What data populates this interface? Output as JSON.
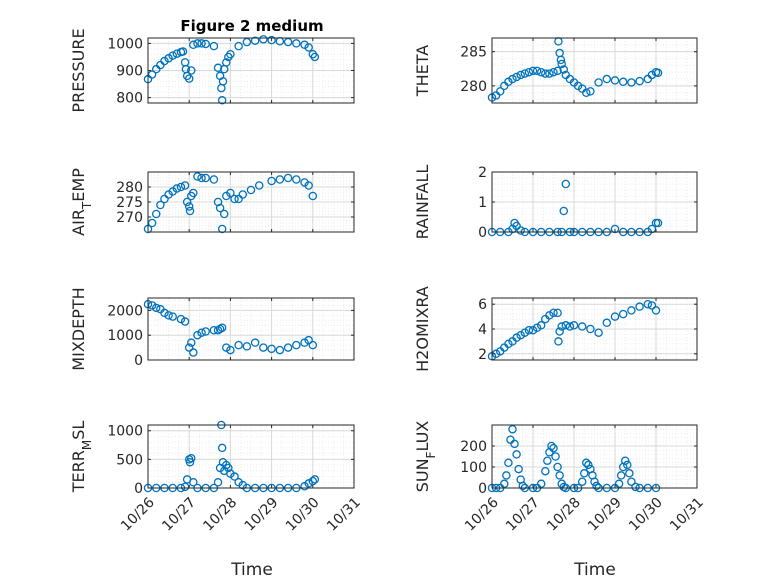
{
  "figure": {
    "title": "Figure 2 medium",
    "xlabel": "Time"
  },
  "x_ticks": [
    "10/26",
    "10/27",
    "10/28",
    "10/29",
    "10/30",
    "10/31"
  ],
  "colors": {
    "marker": "#0072BD",
    "axis": "#262626",
    "grid": "#d9d9d9",
    "minor_grid": "#ececec"
  },
  "chart_data": [
    {
      "type": "scatter",
      "ylabel": "PRESSURE",
      "ylim": [
        780,
        1020
      ],
      "yticks": [
        800,
        900,
        1000
      ],
      "xlim": [
        26,
        31
      ],
      "x": [
        26.0,
        26.1,
        26.2,
        26.3,
        26.4,
        26.5,
        26.6,
        26.7,
        26.8,
        26.85,
        26.9,
        26.92,
        26.95,
        27.0,
        27.05,
        27.1,
        27.2,
        27.3,
        27.4,
        27.6,
        27.7,
        27.75,
        27.78,
        27.8,
        27.82,
        27.85,
        27.9,
        27.95,
        28.0,
        28.2,
        28.4,
        28.6,
        28.8,
        29.0,
        29.2,
        29.4,
        29.6,
        29.8,
        29.9,
        30.0,
        30.05
      ],
      "y": [
        868,
        885,
        905,
        920,
        935,
        945,
        955,
        962,
        968,
        970,
        930,
        905,
        880,
        870,
        900,
        995,
        1000,
        1000,
        998,
        990,
        910,
        880,
        835,
        790,
        860,
        905,
        930,
        950,
        960,
        990,
        1005,
        1010,
        1015,
        1012,
        1008,
        1005,
        1000,
        995,
        985,
        960,
        950
      ]
    },
    {
      "type": "scatter",
      "ylabel": "THETA",
      "ylim": [
        277.5,
        287
      ],
      "yticks": [
        280,
        285
      ],
      "xlim": [
        26,
        31
      ],
      "x": [
        26.0,
        26.1,
        26.2,
        26.3,
        26.4,
        26.5,
        26.6,
        26.7,
        26.8,
        26.9,
        27.0,
        27.1,
        27.2,
        27.3,
        27.4,
        27.5,
        27.6,
        27.62,
        27.65,
        27.68,
        27.7,
        27.75,
        27.8,
        27.9,
        28.0,
        28.1,
        28.2,
        28.3,
        28.4,
        28.6,
        28.8,
        29.0,
        29.2,
        29.4,
        29.6,
        29.8,
        29.9,
        30.0,
        30.05
      ],
      "y": [
        278.3,
        278.6,
        279.2,
        280.0,
        280.6,
        281.0,
        281.3,
        281.6,
        281.8,
        282.0,
        282.2,
        282.2,
        282.0,
        281.8,
        281.8,
        282.0,
        282.2,
        286.5,
        284.8,
        283.8,
        283.2,
        282.4,
        281.6,
        281.0,
        280.5,
        280.0,
        279.6,
        279.0,
        279.2,
        280.5,
        281.0,
        280.8,
        280.6,
        280.5,
        280.7,
        281.0,
        281.6,
        282.0,
        281.9
      ]
    },
    {
      "type": "scatter",
      "ylabel": "AIR_TEMP",
      "ylim": [
        265,
        285
      ],
      "yticks": [
        270,
        275,
        280
      ],
      "xlim": [
        26,
        31
      ],
      "x": [
        26.0,
        26.1,
        26.2,
        26.3,
        26.4,
        26.5,
        26.6,
        26.7,
        26.8,
        26.9,
        26.95,
        27.0,
        27.02,
        27.05,
        27.1,
        27.2,
        27.3,
        27.4,
        27.6,
        27.7,
        27.75,
        27.8,
        27.85,
        27.9,
        28.0,
        28.1,
        28.2,
        28.3,
        28.5,
        28.7,
        29.0,
        29.2,
        29.4,
        29.6,
        29.8,
        29.9,
        30.0
      ],
      "y": [
        266,
        268,
        271,
        274,
        276,
        277.5,
        278.5,
        279.5,
        280,
        280.5,
        275,
        273.5,
        272,
        277,
        278,
        283.5,
        283,
        283,
        282.5,
        275,
        273,
        266,
        271,
        277,
        278,
        276,
        276,
        277.5,
        279,
        280.5,
        282,
        282.5,
        283,
        282.5,
        281.5,
        280.5,
        277
      ]
    },
    {
      "type": "scatter",
      "ylabel": "RAINFALL",
      "ylim": [
        0,
        2
      ],
      "yticks": [
        0,
        1,
        2
      ],
      "xlim": [
        26,
        31
      ],
      "x": [
        26.0,
        26.2,
        26.4,
        26.5,
        26.55,
        26.6,
        26.7,
        26.8,
        27.0,
        27.2,
        27.4,
        27.6,
        27.7,
        27.75,
        27.8,
        27.9,
        28.0,
        28.2,
        28.4,
        28.6,
        28.8,
        29.0,
        29.2,
        29.4,
        29.6,
        29.8,
        29.9,
        30.0,
        30.05
      ],
      "y": [
        0,
        0,
        0,
        0.1,
        0.3,
        0.2,
        0.05,
        0,
        0,
        0,
        0,
        0,
        0,
        0.7,
        1.6,
        0,
        0,
        0,
        0,
        0,
        0,
        0.1,
        0,
        0,
        0,
        0,
        0.1,
        0.3,
        0.3
      ]
    },
    {
      "type": "scatter",
      "ylabel": "MIXDEPTH",
      "ylim": [
        0,
        2500
      ],
      "yticks": [
        0,
        1000,
        2000
      ],
      "xlim": [
        26,
        31
      ],
      "x": [
        26.0,
        26.1,
        26.2,
        26.3,
        26.4,
        26.5,
        26.6,
        26.8,
        26.9,
        27.0,
        27.05,
        27.1,
        27.2,
        27.3,
        27.4,
        27.6,
        27.7,
        27.75,
        27.8,
        27.9,
        28.0,
        28.2,
        28.4,
        28.6,
        28.8,
        29.0,
        29.2,
        29.4,
        29.6,
        29.8,
        29.9,
        30.0
      ],
      "y": [
        2250,
        2200,
        2100,
        2050,
        1900,
        1800,
        1750,
        1650,
        1550,
        500,
        700,
        300,
        1000,
        1100,
        1150,
        1200,
        1200,
        1250,
        1300,
        500,
        400,
        600,
        550,
        700,
        500,
        450,
        400,
        500,
        600,
        700,
        800,
        600
      ]
    },
    {
      "type": "scatter",
      "ylabel": "H2OMIXRA",
      "ylim": [
        1.5,
        6.5
      ],
      "yticks": [
        2,
        4,
        6
      ],
      "xlim": [
        26,
        31
      ],
      "x": [
        26.0,
        26.1,
        26.2,
        26.3,
        26.4,
        26.5,
        26.6,
        26.7,
        26.8,
        26.9,
        27.0,
        27.1,
        27.2,
        27.3,
        27.4,
        27.5,
        27.6,
        27.62,
        27.65,
        27.7,
        27.8,
        27.9,
        28.0,
        28.2,
        28.4,
        28.6,
        28.8,
        29.0,
        29.2,
        29.4,
        29.6,
        29.8,
        29.9,
        30.0
      ],
      "y": [
        1.8,
        2.0,
        2.2,
        2.5,
        2.8,
        3.0,
        3.3,
        3.5,
        3.7,
        3.9,
        3.9,
        4.1,
        4.3,
        4.8,
        5.1,
        5.3,
        5.3,
        3.0,
        3.8,
        4.2,
        4.3,
        4.2,
        4.3,
        4.2,
        4.0,
        3.7,
        4.5,
        5.0,
        5.2,
        5.5,
        5.8,
        6.0,
        5.9,
        5.5
      ]
    },
    {
      "type": "scatter",
      "ylabel": "TERR_MSL",
      "ylim": [
        0,
        1100
      ],
      "yticks": [
        0,
        500,
        1000
      ],
      "xlim": [
        26,
        31
      ],
      "x": [
        26.0,
        26.2,
        26.4,
        26.6,
        26.8,
        26.9,
        26.95,
        27.0,
        27.02,
        27.05,
        27.1,
        27.2,
        27.4,
        27.6,
        27.7,
        27.75,
        27.78,
        27.8,
        27.82,
        27.85,
        27.9,
        27.95,
        28.0,
        28.1,
        28.2,
        28.3,
        28.4,
        28.6,
        28.8,
        29.0,
        29.2,
        29.4,
        29.6,
        29.8,
        29.9,
        30.0,
        30.05
      ],
      "y": [
        0,
        0,
        0,
        0,
        0,
        20,
        150,
        500,
        450,
        520,
        100,
        0,
        0,
        0,
        100,
        350,
        1100,
        700,
        450,
        300,
        400,
        350,
        250,
        200,
        100,
        50,
        0,
        0,
        0,
        0,
        0,
        0,
        0,
        30,
        80,
        120,
        150
      ]
    },
    {
      "type": "scatter",
      "ylabel": "SUN_FLUX",
      "ylim": [
        0,
        300
      ],
      "yticks": [
        0,
        100,
        200
      ],
      "xlim": [
        26,
        31
      ],
      "x": [
        26.0,
        26.1,
        26.2,
        26.3,
        26.35,
        26.4,
        26.45,
        26.5,
        26.55,
        26.6,
        26.65,
        26.7,
        26.75,
        26.8,
        27.0,
        27.1,
        27.2,
        27.3,
        27.35,
        27.4,
        27.45,
        27.5,
        27.55,
        27.6,
        27.65,
        27.7,
        27.75,
        27.8,
        28.0,
        28.1,
        28.2,
        28.25,
        28.3,
        28.35,
        28.4,
        28.45,
        28.5,
        28.55,
        28.6,
        28.8,
        29.0,
        29.1,
        29.15,
        29.2,
        29.25,
        29.3,
        29.35,
        29.4,
        29.5,
        29.6,
        29.8,
        30.0
      ],
      "y": [
        0,
        0,
        0,
        20,
        60,
        120,
        230,
        280,
        210,
        160,
        90,
        40,
        10,
        0,
        0,
        0,
        20,
        80,
        130,
        170,
        200,
        190,
        150,
        100,
        60,
        20,
        5,
        0,
        0,
        0,
        30,
        70,
        120,
        110,
        90,
        60,
        30,
        10,
        0,
        0,
        0,
        20,
        60,
        100,
        130,
        110,
        70,
        30,
        5,
        0,
        0,
        0
      ]
    }
  ]
}
